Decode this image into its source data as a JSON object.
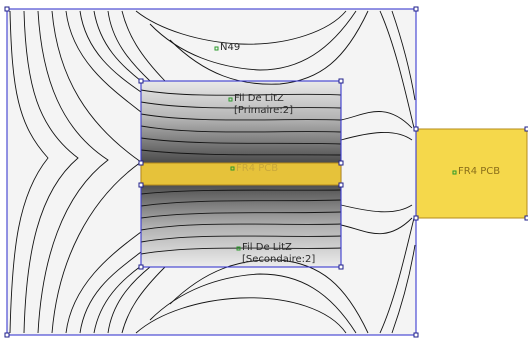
{
  "colors": {
    "background": "#f4f4f4",
    "boundary": "#3b3bd0",
    "contour_line": "#141414",
    "pcb_fill": "#f5d84b",
    "pcb_edge": "#b58b1a",
    "label_marker": "#2a9a2a",
    "label_text": "#2b2b2b"
  },
  "labels": {
    "core": "N49",
    "primary_line1": "Fil De LitZ",
    "primary_line2": "[Primaire:2]",
    "pcb_inner": "FR4 PCB",
    "pcb_outer": "FR4 PCB",
    "secondary_line1": "Fil De LitZ",
    "secondary_line2": "[Secondaire:2]"
  }
}
